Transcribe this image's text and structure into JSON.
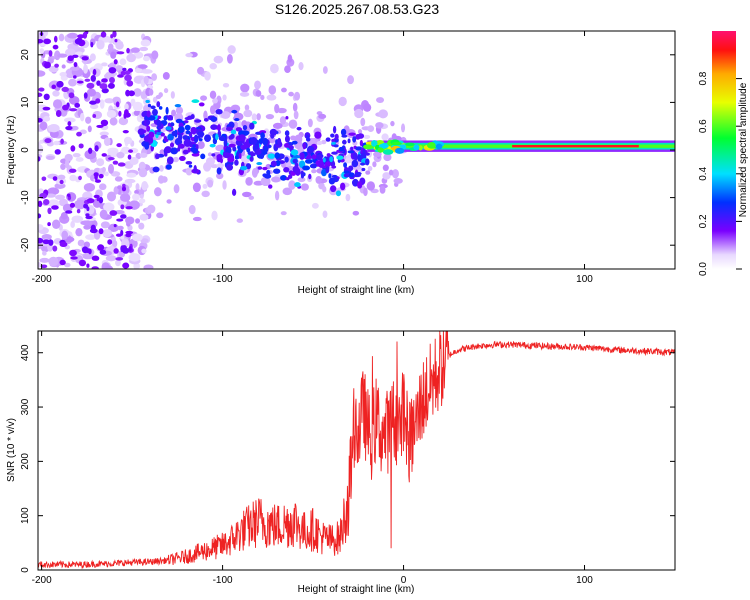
{
  "title": "S126.2025.267.08.53.G23",
  "chart_data": [
    {
      "type": "heatmap",
      "name": "spectrogram",
      "xlabel": "Height of straight line (km)",
      "ylabel": "Frequency (Hz)",
      "xlim": [
        -202,
        150
      ],
      "ylim": [
        -25,
        25
      ],
      "xticks": [
        -200,
        -100,
        0,
        100
      ],
      "yticks": [
        -20,
        -10,
        0,
        10,
        20
      ],
      "colorbar": {
        "label": "Normalized spectral amplitude",
        "range": [
          0,
          1
        ],
        "ticks": [
          0.0,
          0.2,
          0.4,
          0.6,
          0.8
        ]
      },
      "features": {
        "noise_region_km": [
          -202,
          -150
        ],
        "scatter_region_km": [
          -145,
          -20
        ],
        "carrier_line_km": [
          -20,
          150
        ],
        "carrier_freq_hz": 0.8,
        "peak_amplitude_region_km": [
          60,
          130
        ]
      }
    },
    {
      "type": "line",
      "name": "snr",
      "xlabel": "Height of straight line (km)",
      "ylabel": "SNR (10 * v/v)",
      "xlim": [
        -202,
        150
      ],
      "ylim": [
        0,
        440
      ],
      "xticks": [
        -200,
        -100,
        0,
        100
      ],
      "yticks": [
        0,
        100,
        200,
        300,
        400
      ],
      "color": "#ee2222",
      "series": [
        {
          "name": "SNR",
          "x": [
            -202,
            -180,
            -160,
            -150,
            -140,
            -130,
            -120,
            -110,
            -100,
            -95,
            -90,
            -85,
            -80,
            -75,
            -70,
            -65,
            -60,
            -55,
            -50,
            -45,
            -40,
            -35,
            -30,
            -27,
            -25,
            -22,
            -20,
            -18,
            -15,
            -12,
            -10,
            -8,
            -5,
            -2,
            0,
            3,
            5,
            8,
            10,
            15,
            20,
            25,
            30,
            40,
            50,
            60,
            80,
            100,
            120,
            140,
            150
          ],
          "values": [
            10,
            10,
            12,
            14,
            15,
            18,
            25,
            35,
            45,
            55,
            70,
            80,
            90,
            85,
            80,
            85,
            90,
            70,
            75,
            60,
            55,
            60,
            140,
            280,
            250,
            300,
            260,
            240,
            280,
            250,
            250,
            260,
            280,
            260,
            300,
            230,
            250,
            280,
            310,
            340,
            370,
            395,
            405,
            412,
            415,
            415,
            412,
            410,
            405,
            402,
            400
          ]
        }
      ],
      "spike_max": 440
    }
  ]
}
